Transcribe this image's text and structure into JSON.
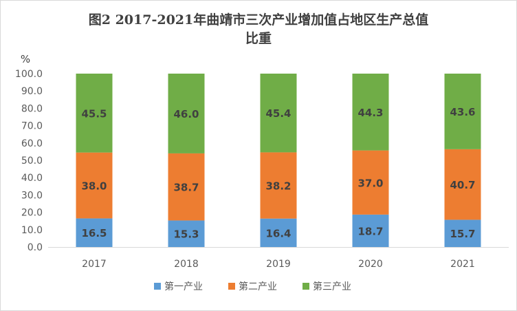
{
  "chart_data": {
    "type": "bar",
    "stacked": true,
    "title_line1": "图2   2017-2021年曲靖市三次产业增加值占地区生产总值",
    "title_line2": "比重",
    "ylabel": "%",
    "ylim": [
      0,
      100
    ],
    "yticks": [
      "0.0",
      "10.0",
      "20.0",
      "30.0",
      "40.0",
      "50.0",
      "60.0",
      "70.0",
      "80.0",
      "90.0",
      "100.0"
    ],
    "categories": [
      "2017",
      "2018",
      "2019",
      "2020",
      "2021"
    ],
    "series": [
      {
        "name": "第一产业",
        "color": "#5B9BD5",
        "values": [
          16.5,
          15.3,
          16.4,
          18.7,
          15.7
        ],
        "labels": [
          "16.5",
          "15.3",
          "16.4",
          "18.7",
          "15.7"
        ]
      },
      {
        "name": "第二产业",
        "color": "#ED7D31",
        "values": [
          38.0,
          38.7,
          38.2,
          37.0,
          40.7
        ],
        "labels": [
          "38.0",
          "38.7",
          "38.2",
          "37.0",
          "40.7"
        ]
      },
      {
        "name": "第三产业",
        "color": "#70AD47",
        "values": [
          45.5,
          46.0,
          45.4,
          44.3,
          43.6
        ],
        "labels": [
          "45.5",
          "46.0",
          "45.4",
          "44.3",
          "43.6"
        ]
      }
    ],
    "grid": false,
    "legend_position": "bottom"
  }
}
